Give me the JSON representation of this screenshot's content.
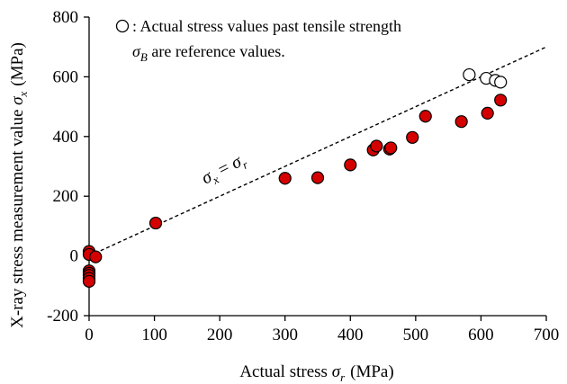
{
  "chart_data": {
    "type": "scatter",
    "title": "",
    "xlabel": {
      "text": "Actual stress ",
      "symbol": "σ",
      "subscript": "r",
      "unit": "(MPa)"
    },
    "ylabel": {
      "text": "X-ray stress measurement value ",
      "symbol": "σ",
      "subscript": "x",
      "unit": "(MPa)"
    },
    "xlim": [
      0,
      700
    ],
    "ylim": [
      -200,
      800
    ],
    "x_ticks": [
      0,
      100,
      200,
      300,
      400,
      500,
      600,
      700
    ],
    "y_ticks": [
      -200,
      0,
      200,
      400,
      600,
      800
    ],
    "grid": false,
    "legend": {
      "placement": "top-right",
      "marker": "open-circle",
      "line1": ": Actual stress values past tensile strength",
      "line2_symbol": "σ",
      "line2_sub": "B",
      "line2_rest": " are reference values."
    },
    "reference_line": {
      "label_left": "σ",
      "label_left_sub": "x",
      "label_eq": " = ",
      "label_right": "σ",
      "label_right_sub": "r",
      "from": [
        0,
        0
      ],
      "to": [
        700,
        700
      ],
      "style": "dashed"
    },
    "series": [
      {
        "name": "measured",
        "color": "#d40000",
        "marker": "filled-circle",
        "points": [
          [
            0,
            15
          ],
          [
            0,
            5
          ],
          [
            0,
            -50
          ],
          [
            0,
            -58
          ],
          [
            0,
            -65
          ],
          [
            0,
            -75
          ],
          [
            0,
            -85
          ],
          [
            10,
            -3
          ],
          [
            102,
            110
          ],
          [
            300,
            260
          ],
          [
            350,
            262
          ],
          [
            400,
            305
          ],
          [
            435,
            355
          ],
          [
            440,
            368
          ],
          [
            460,
            358
          ],
          [
            462,
            362
          ],
          [
            495,
            397
          ],
          [
            515,
            468
          ],
          [
            570,
            450
          ],
          [
            610,
            478
          ],
          [
            630,
            522
          ]
        ]
      },
      {
        "name": "reference",
        "color": "#ffffff",
        "marker": "open-circle",
        "points": [
          [
            582,
            607
          ],
          [
            608,
            595
          ],
          [
            622,
            588
          ],
          [
            630,
            582
          ]
        ]
      }
    ]
  }
}
